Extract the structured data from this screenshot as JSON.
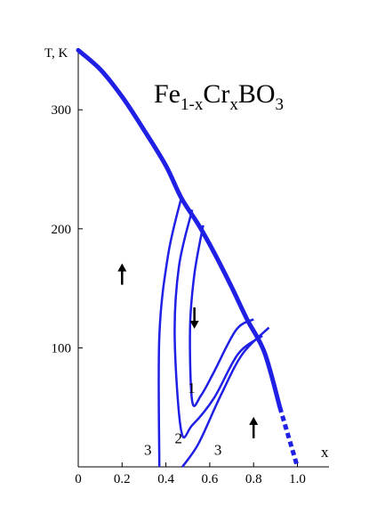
{
  "chart_data": {
    "type": "line",
    "title_main": "Fe",
    "title_sub1": "1-x",
    "title_mid": "Cr",
    "title_sub2": "x",
    "title_end": "BO",
    "title_sub3": "3",
    "xlabel": "x",
    "ylabel": "T, K",
    "xlim": [
      0,
      1.05
    ],
    "ylim": [
      0,
      375
    ],
    "xticks": [
      {
        "v": 0,
        "label": "0"
      },
      {
        "v": 0.2,
        "label": "0.2"
      },
      {
        "v": 0.4,
        "label": "0.4"
      },
      {
        "v": 0.6,
        "label": "0.6"
      },
      {
        "v": 0.8,
        "label": "0.8"
      },
      {
        "v": 1.0,
        "label": "1.0"
      }
    ],
    "yticks": [
      {
        "v": 100,
        "label": "100"
      },
      {
        "v": 200,
        "label": "200"
      },
      {
        "v": 300,
        "label": "300"
      }
    ],
    "color": "#1f1fe6",
    "boundary": {
      "solid": [
        [
          0.0,
          350
        ],
        [
          0.1,
          334
        ],
        [
          0.2,
          311
        ],
        [
          0.3,
          283
        ],
        [
          0.4,
          253
        ],
        [
          0.47,
          226
        ],
        [
          0.55,
          203
        ],
        [
          0.62,
          180
        ],
        [
          0.7,
          151
        ],
        [
          0.77,
          124
        ],
        [
          0.85,
          96
        ],
        [
          0.92,
          50
        ]
      ],
      "dashed": [
        [
          0.92,
          50
        ],
        [
          0.96,
          25
        ],
        [
          1.0,
          0
        ]
      ]
    },
    "curves": [
      {
        "label": "1",
        "points": [
          [
            0.57,
            203
          ],
          [
            0.53,
            162
          ],
          [
            0.51,
            116
          ],
          [
            0.52,
            55
          ],
          [
            0.56,
            60
          ],
          [
            0.62,
            80
          ],
          [
            0.72,
            115
          ],
          [
            0.8,
            124
          ]
        ]
      },
      {
        "label": "2",
        "points": [
          [
            0.52,
            216
          ],
          [
            0.46,
            169
          ],
          [
            0.44,
            110
          ],
          [
            0.47,
            30
          ],
          [
            0.52,
            35
          ],
          [
            0.62,
            58
          ],
          [
            0.73,
            95
          ],
          [
            0.84,
            110
          ]
        ]
      },
      {
        "label": "3",
        "points": [
          [
            0.47,
            226
          ],
          [
            0.41,
            178
          ],
          [
            0.37,
            110
          ],
          [
            0.37,
            0
          ]
        ]
      },
      {
        "label": "3",
        "points": [
          [
            0.475,
            0
          ],
          [
            0.55,
            20
          ],
          [
            0.65,
            60
          ],
          [
            0.75,
            95
          ],
          [
            0.87,
            117
          ]
        ]
      }
    ],
    "curve_labels": [
      {
        "text": "1",
        "x": 0.5,
        "y": 62
      },
      {
        "text": "2",
        "x": 0.44,
        "y": 20
      },
      {
        "text": "3",
        "x": 0.3,
        "y": 10
      },
      {
        "text": "3",
        "x": 0.62,
        "y": 10
      }
    ],
    "arrows": [
      {
        "x": 0.2,
        "y": 162,
        "dir": "up"
      },
      {
        "x": 0.53,
        "y": 125,
        "dir": "down"
      },
      {
        "x": 0.8,
        "y": 33,
        "dir": "up"
      }
    ]
  }
}
